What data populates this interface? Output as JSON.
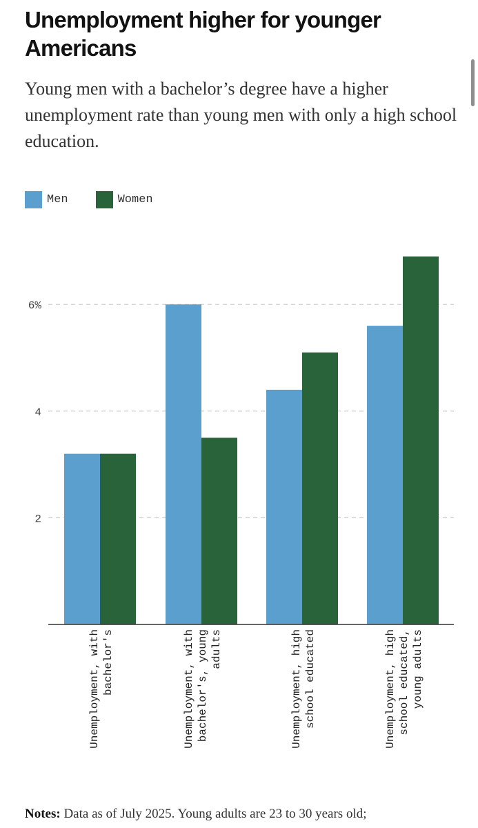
{
  "title": "Unemployment higher for younger Americans",
  "subtitle": "Young men with a bachelor’s degree have a higher unemployment rate than young men with only a high school education.",
  "notes": {
    "label": "Notes:",
    "text": "Data as of July 2025. Young adults are 23 to 30 years old;"
  },
  "colors": {
    "men": "#5b9fcf",
    "women": "#28633a",
    "grid": "#c8c8c8",
    "axis": "#333333"
  },
  "chart_data": {
    "type": "bar",
    "categories": [
      [
        "Unemployment, with",
        "bachelor's"
      ],
      [
        "Unemployment, with",
        "bachelor's, young",
        "adults"
      ],
      [
        "Unemployment, high",
        "school educated"
      ],
      [
        "Unemployment, high",
        "school educated,",
        "young adults"
      ]
    ],
    "series": [
      {
        "name": "Men",
        "values": [
          3.2,
          6.0,
          4.4,
          5.6
        ]
      },
      {
        "name": "Women",
        "values": [
          3.2,
          3.5,
          5.1,
          6.9
        ]
      }
    ],
    "yticks": [
      {
        "value": 2,
        "label": "2"
      },
      {
        "value": 4,
        "label": "4"
      },
      {
        "value": 6,
        "label": "6%"
      }
    ],
    "ylim": [
      0,
      7
    ],
    "grid": true,
    "legend": "top-left"
  }
}
